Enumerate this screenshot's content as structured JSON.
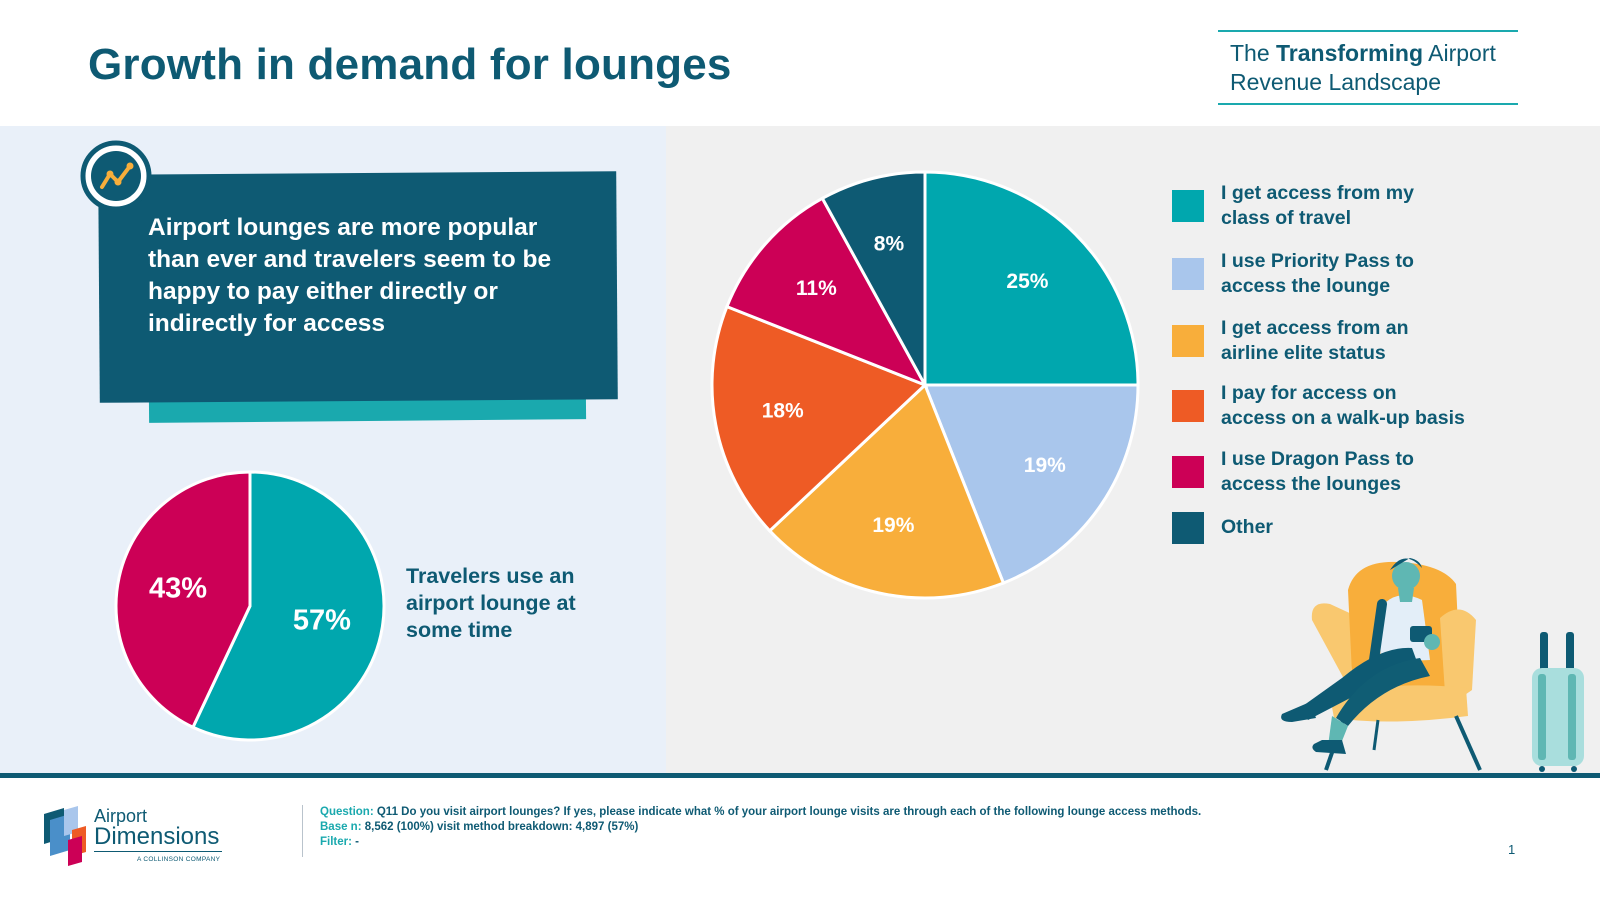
{
  "title": "Growth in demand for lounges",
  "brand": {
    "line1_pre": "The ",
    "line1_bold": "Transforming",
    "line1_post": " Airport",
    "line2": "Revenue Landscape"
  },
  "callout": {
    "text": "Airport lounges are more popular than ever and travelers seem to be happy to pay either directly or indirectly for access",
    "icon": "trend-line-icon"
  },
  "colors": {
    "teal": "#00a7ae",
    "navy": "#0e5a73",
    "crimson": "#cc0056",
    "lightblue": "#a9c6ec",
    "orange": "#f8ae3b",
    "red_orange": "#ee5b25",
    "panel_left": "#e9f0f9",
    "panel_right": "#f0f0f0"
  },
  "chart_data": [
    {
      "type": "pie",
      "title": "",
      "caption": "Travelers use an airport lounge at some time",
      "labels": [
        "57%",
        "43%"
      ],
      "values": [
        57,
        43
      ],
      "colors": [
        "#00a7ae",
        "#cc0056"
      ]
    },
    {
      "type": "pie",
      "title": "",
      "legend_position": "right",
      "categories": [
        "I get access from my class of travel",
        "I use Priority Pass to access the lounge",
        "I get access from an airline elite status",
        "I pay for access on access on a walk-up basis",
        "I use Dragon Pass to access the lounges",
        "Other"
      ],
      "legend_lines": [
        [
          "I get access from my",
          "class of travel"
        ],
        [
          "I use Priority Pass to",
          "access the lounge"
        ],
        [
          "I get access from an",
          "airline elite status"
        ],
        [
          "I pay for access on",
          "access on a walk-up basis"
        ],
        [
          "I use Dragon Pass to",
          "access the lounges"
        ],
        [
          "Other"
        ]
      ],
      "values": [
        25,
        19,
        19,
        18,
        11,
        8
      ],
      "labels": [
        "25%",
        "19%",
        "19%",
        "18%",
        "11%",
        "8%"
      ],
      "colors": [
        "#00a7ae",
        "#a9c6ec",
        "#f8ae3b",
        "#ee5b25",
        "#cc0056",
        "#0e5a73"
      ]
    }
  ],
  "logo": {
    "line1": "Airport",
    "line2": "Dimensions",
    "line3": "A COLLINSON COMPANY"
  },
  "footer": {
    "question_key": "Question:",
    "question": " Q11 Do you visit airport lounges? If yes, please indicate what % of your airport lounge visits are through each of the following lounge access methods.",
    "base_key": "Base n:",
    "base": " 8,562 (100%) visit method breakdown: 4,897 (57%)",
    "filter_key": "Filter:",
    "filter": " -"
  },
  "page_number": "1"
}
